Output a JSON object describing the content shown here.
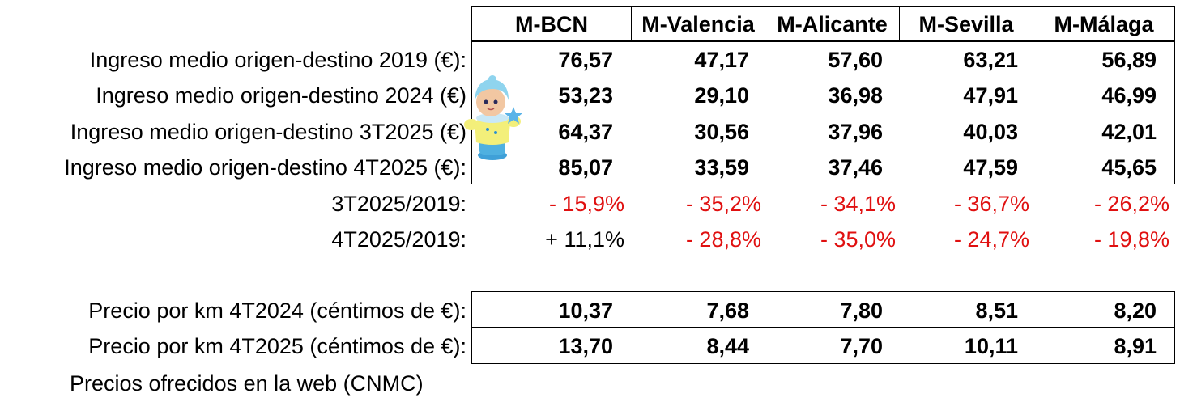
{
  "columns": [
    "M-BCN",
    "M-Valencia",
    "M-Alicante",
    "M-Sevilla",
    "M-Málaga"
  ],
  "income_rows": [
    {
      "label": "Ingreso medio origen-destino 2019 (€):",
      "values": [
        "76,57",
        "47,17",
        "57,60",
        "63,21",
        "56,89"
      ]
    },
    {
      "label": "Ingreso medio origen-destino 2024 (€)",
      "values": [
        "53,23",
        "29,10",
        "36,98",
        "47,91",
        "46,99"
      ]
    },
    {
      "label": "Ingreso medio origen-destino 3T2025 (€)",
      "values": [
        "64,37",
        "30,56",
        "37,96",
        "40,03",
        "42,01"
      ]
    },
    {
      "label": "Ingreso medio origen-destino 4T2025 (€):",
      "values": [
        "85,07",
        "33,59",
        "37,46",
        "47,59",
        "45,65"
      ]
    }
  ],
  "ratio_rows": [
    {
      "label": "3T2025/2019:",
      "values": [
        "- 15,9%",
        "- 35,2%",
        "- 34,1%",
        "- 36,7%",
        "- 26,2%"
      ]
    },
    {
      "label": "4T2025/2019:",
      "values": [
        "+ 11,1%",
        "- 28,8%",
        "- 35,0%",
        "- 24,7%",
        "- 19,8%"
      ]
    }
  ],
  "price_rows": [
    {
      "label": "Precio por km 4T2024 (céntimos de €):",
      "values": [
        "10,37",
        "7,68",
        "7,80",
        "8,51",
        "8,20"
      ]
    },
    {
      "label": "Precio por km 4T2025 (céntimos de €):",
      "values": [
        "13,70",
        "8,44",
        "7,70",
        "10,11",
        "8,91"
      ]
    }
  ],
  "footnote": "Precios ofrecidos en la web (CNMC)",
  "colors": {
    "negative": "#e01010",
    "positive": "#000000",
    "grid": "#000000"
  },
  "decoration": "toy-doll-icon"
}
